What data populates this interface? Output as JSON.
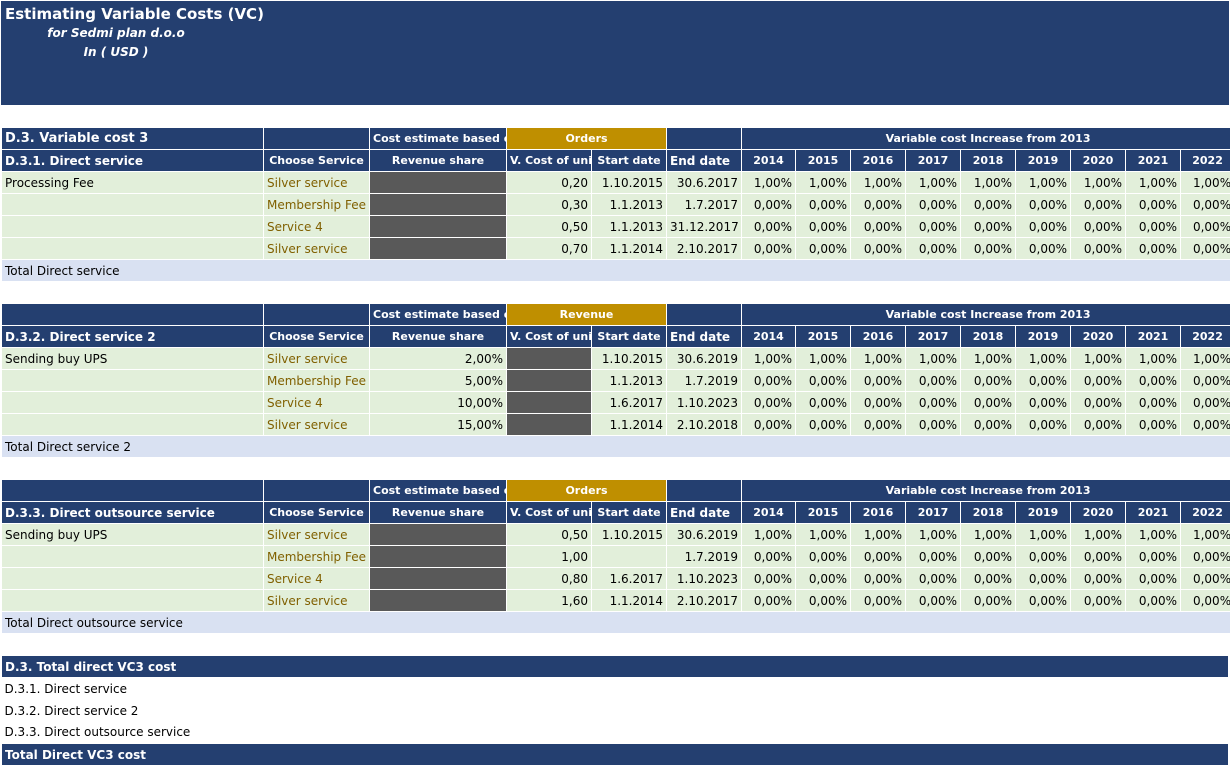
{
  "header": {
    "title": "Estimating Variable Costs (VC)",
    "subtitle": "for Sedmi plan d.o.o",
    "currency": "In ( USD )"
  },
  "section_title": "D.3. Variable cost 3",
  "labels": {
    "cost_estimate": "Cost estimate based on",
    "increase": "Variable cost Increase from 2013",
    "choose_service": "Choose Service",
    "revenue_share": "Revenue share",
    "v_cost": "V. Cost of unit",
    "start": "Start date",
    "end": "End date"
  },
  "years": [
    "2014",
    "2015",
    "2016",
    "2017",
    "2018",
    "2019",
    "2020",
    "2021",
    "2022"
  ],
  "colors": {
    "navy": "#243F70",
    "gold": "#BF8F00",
    "row": "#E2EFDA",
    "total": "#D9E1F2",
    "blocked": "#595959"
  },
  "sections": [
    {
      "title": "D.3.1. Direct service",
      "basis": "Orders",
      "total": "Total Direct service",
      "rows": [
        {
          "name": "Processing Fee",
          "service": "Silver service",
          "share": null,
          "vcost": "0,20",
          "start": "1.10.2015",
          "end": "30.6.2017",
          "rates": [
            "1,00%",
            "1,00%",
            "1,00%",
            "1,00%",
            "1,00%",
            "1,00%",
            "1,00%",
            "1,00%",
            "1,00%"
          ]
        },
        {
          "name": "",
          "service": "Membership Fee",
          "share": null,
          "vcost": "0,30",
          "start": "1.1.2013",
          "end": "1.7.2017",
          "rates": [
            "0,00%",
            "0,00%",
            "0,00%",
            "0,00%",
            "0,00%",
            "0,00%",
            "0,00%",
            "0,00%",
            "0,00%"
          ]
        },
        {
          "name": "",
          "service": "Service 4",
          "share": null,
          "vcost": "0,50",
          "start": "1.1.2013",
          "end": "31.12.2017",
          "rates": [
            "0,00%",
            "0,00%",
            "0,00%",
            "0,00%",
            "0,00%",
            "0,00%",
            "0,00%",
            "0,00%",
            "0,00%"
          ]
        },
        {
          "name": "",
          "service": "Silver service",
          "share": null,
          "vcost": "0,70",
          "start": "1.1.2014",
          "end": "2.10.2017",
          "rates": [
            "0,00%",
            "0,00%",
            "0,00%",
            "0,00%",
            "0,00%",
            "0,00%",
            "0,00%",
            "0,00%",
            "0,00%"
          ]
        }
      ]
    },
    {
      "title": "D.3.2. Direct service 2",
      "basis": "Revenue",
      "total": "Total Direct service 2",
      "rows": [
        {
          "name": "Sending buy UPS",
          "service": "Silver service",
          "share": "2,00%",
          "vcost": null,
          "start": "1.10.2015",
          "end": "30.6.2019",
          "rates": [
            "1,00%",
            "1,00%",
            "1,00%",
            "1,00%",
            "1,00%",
            "1,00%",
            "1,00%",
            "1,00%",
            "1,00%"
          ]
        },
        {
          "name": "",
          "service": "Membership Fee",
          "share": "5,00%",
          "vcost": null,
          "start": "1.1.2013",
          "end": "1.7.2019",
          "rates": [
            "0,00%",
            "0,00%",
            "0,00%",
            "0,00%",
            "0,00%",
            "0,00%",
            "0,00%",
            "0,00%",
            "0,00%"
          ]
        },
        {
          "name": "",
          "service": "Service 4",
          "share": "10,00%",
          "vcost": null,
          "start": "1.6.2017",
          "end": "1.10.2023",
          "rates": [
            "0,00%",
            "0,00%",
            "0,00%",
            "0,00%",
            "0,00%",
            "0,00%",
            "0,00%",
            "0,00%",
            "0,00%"
          ]
        },
        {
          "name": "",
          "service": "Silver service",
          "share": "15,00%",
          "vcost": null,
          "start": "1.1.2014",
          "end": "2.10.2018",
          "rates": [
            "0,00%",
            "0,00%",
            "0,00%",
            "0,00%",
            "0,00%",
            "0,00%",
            "0,00%",
            "0,00%",
            "0,00%"
          ]
        }
      ]
    },
    {
      "title": "D.3.3. Direct outsource service",
      "basis": "Orders",
      "total": "Total Direct outsource service",
      "rows": [
        {
          "name": "Sending buy UPS",
          "service": "Silver service",
          "share": null,
          "vcost": "0,50",
          "start": "1.10.2015",
          "end": "30.6.2019",
          "rates": [
            "1,00%",
            "1,00%",
            "1,00%",
            "1,00%",
            "1,00%",
            "1,00%",
            "1,00%",
            "1,00%",
            "1,00%"
          ]
        },
        {
          "name": "",
          "service": "Membership Fee",
          "share": null,
          "vcost": "1,00",
          "start": "",
          "end": "1.7.2019",
          "rates": [
            "0,00%",
            "0,00%",
            "0,00%",
            "0,00%",
            "0,00%",
            "0,00%",
            "0,00%",
            "0,00%",
            "0,00%"
          ]
        },
        {
          "name": "",
          "service": "Service 4",
          "share": null,
          "vcost": "0,80",
          "start": "1.6.2017",
          "end": "1.10.2023",
          "rates": [
            "0,00%",
            "0,00%",
            "0,00%",
            "0,00%",
            "0,00%",
            "0,00%",
            "0,00%",
            "0,00%",
            "0,00%"
          ]
        },
        {
          "name": "",
          "service": "Silver service",
          "share": null,
          "vcost": "1,60",
          "start": "1.1.2014",
          "end": "2.10.2017",
          "rates": [
            "0,00%",
            "0,00%",
            "0,00%",
            "0,00%",
            "0,00%",
            "0,00%",
            "0,00%",
            "0,00%",
            "0,00%"
          ]
        }
      ]
    }
  ],
  "summary": {
    "title": "D.3. Total direct VC3 cost",
    "items": [
      "D.3.1. Direct service",
      "D.3.2. Direct service 2",
      "D.3.3. Direct outsource service"
    ],
    "total": "Total Direct VC3 cost"
  }
}
